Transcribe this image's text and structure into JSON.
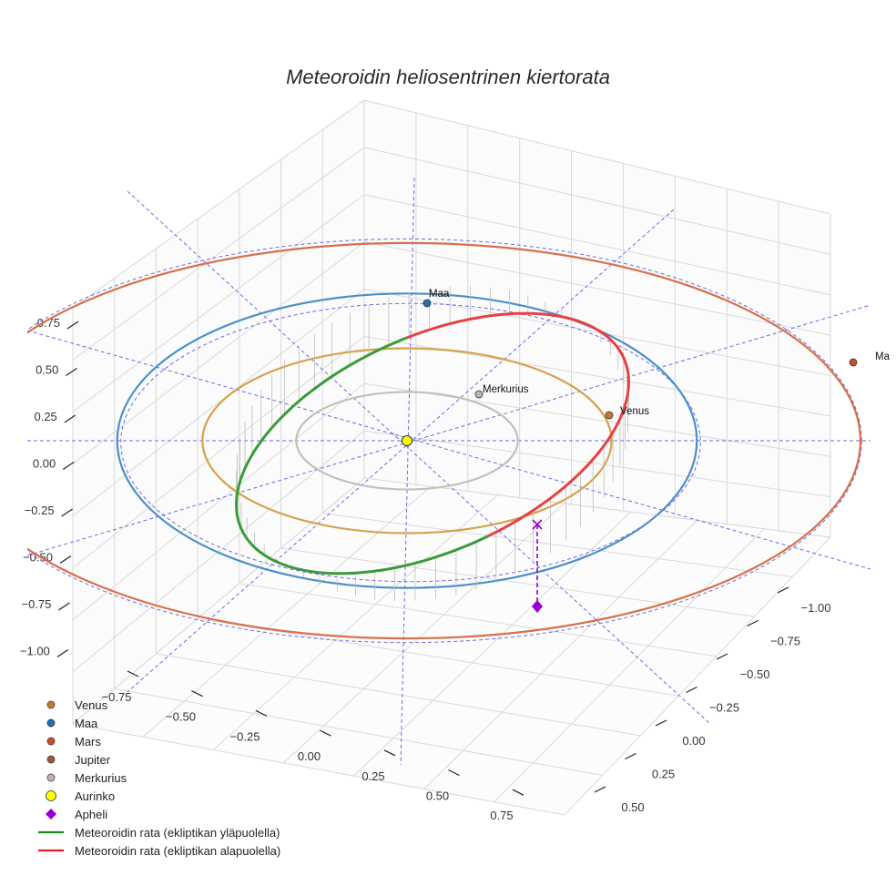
{
  "chart_data": {
    "type": "3d-line",
    "title": "Meteoroidin heliosentrinen kiertorata",
    "axes": {
      "x_ticks": [
        "−0.75",
        "−0.50",
        "−0.25",
        "0.00",
        "0.25",
        "0.50",
        "0.75"
      ],
      "y_ticks": [
        "−1.00",
        "−0.75",
        "−0.50",
        "−0.25",
        "0.00",
        "0.25",
        "0.50"
      ],
      "z_ticks": [
        "0.75",
        "0.50",
        "0.25",
        "0.00",
        "−0.25",
        "−0.50",
        "−0.75",
        "−1.00"
      ],
      "grid": true
    },
    "orbits": [
      {
        "name": "Merkurius",
        "semi_axis_au": 0.39,
        "color": "#c9bdb7"
      },
      {
        "name": "Venus",
        "semi_axis_au": 0.72,
        "color": "#d4a24c"
      },
      {
        "name": "Maa",
        "semi_axis_au": 1.0,
        "color": "#4a90c8"
      },
      {
        "name": "Mars",
        "semi_axis_au": 1.52,
        "color": "#d8704a"
      }
    ],
    "planets": [
      {
        "name": "Venus",
        "label": "Venus",
        "color": "#c9782a"
      },
      {
        "name": "Maa",
        "label": "Maa",
        "color": "#1f6fb4"
      },
      {
        "name": "Mars",
        "label": "Ma",
        "color": "#d24a28"
      },
      {
        "name": "Merkurius",
        "label": "Merkurius",
        "color": "#c4b3ad"
      }
    ],
    "meteoroid_orbit": {
      "above_color": "#3a9a3a",
      "below_color": "#e84040"
    },
    "legend": [
      {
        "label": "Venus",
        "symbol": "dot",
        "color": "#c9782a"
      },
      {
        "label": "Maa",
        "symbol": "dot",
        "color": "#1f6fb4"
      },
      {
        "label": "Mars",
        "symbol": "dot",
        "color": "#d24a28"
      },
      {
        "label": "Jupiter",
        "symbol": "dot",
        "color": "#9c5a3a"
      },
      {
        "label": "Merkurius",
        "symbol": "dot",
        "color": "#c4b3ad"
      },
      {
        "label": "Aurinko",
        "symbol": "sun",
        "color": "#ffff00"
      },
      {
        "label": "Apheli",
        "symbol": "diamond",
        "color": "#9400d3"
      },
      {
        "label": "Meteoroidin rata (ekliptikan yläpuolella)",
        "symbol": "line",
        "color": "#1a8a1a"
      },
      {
        "label": "Meteoroidin rata (ekliptikan alapuolella)",
        "symbol": "line",
        "color": "#e02020"
      }
    ]
  }
}
